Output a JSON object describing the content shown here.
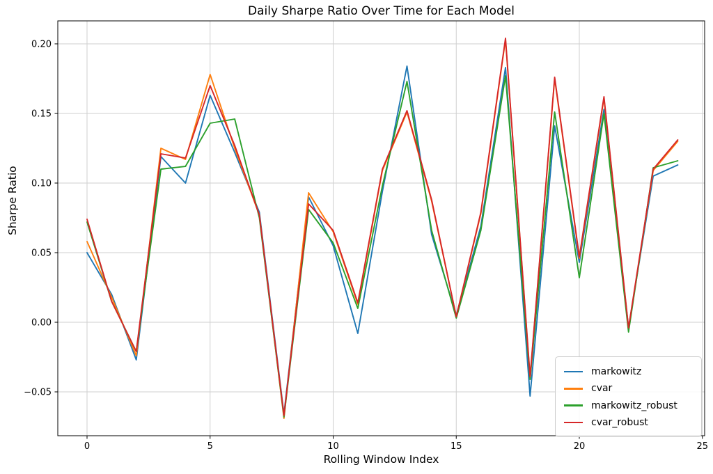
{
  "figure": {
    "background": "#ffffff"
  },
  "chart_data": {
    "type": "line",
    "title": "Daily Sharpe Ratio Over Time for Each Model",
    "xlabel": "Rolling Window Index",
    "ylabel": "Sharpe Ratio",
    "grid": true,
    "legend_position": "lower right",
    "xlim": [
      -1.2,
      25.2
    ],
    "ylim": [
      -0.082,
      0.2185
    ],
    "x": [
      0,
      1,
      2,
      3,
      4,
      5,
      6,
      7,
      8,
      9,
      10,
      11,
      12,
      13,
      14,
      15,
      16,
      17,
      18,
      19,
      20,
      21,
      22,
      23,
      24
    ],
    "xticks": {
      "values": [
        0,
        5,
        10,
        15,
        20,
        25
      ],
      "labels": [
        "0",
        "5",
        "10",
        "15",
        "20",
        "25"
      ]
    },
    "yticks": {
      "values": [
        -0.05,
        0.0,
        0.05,
        0.1,
        0.15,
        0.2
      ],
      "labels": [
        "−0.05",
        "0.00",
        "0.05",
        "0.10",
        "0.15",
        "0.20"
      ]
    },
    "series": [
      {
        "name": "markowitz",
        "color": "#1f77b4",
        "values": [
          0.05,
          0.02,
          -0.027,
          0.119,
          0.1,
          0.163,
          0.122,
          0.079,
          -0.066,
          0.09,
          0.055,
          -0.008,
          0.094,
          0.184,
          0.063,
          0.005,
          0.069,
          0.183,
          -0.053,
          0.141,
          0.043,
          0.153,
          -0.004,
          0.105,
          0.113
        ]
      },
      {
        "name": "cvar",
        "color": "#ff7f0e",
        "values": [
          0.058,
          0.018,
          -0.024,
          0.125,
          0.117,
          0.178,
          0.125,
          0.077,
          -0.069,
          0.093,
          0.065,
          0.013,
          0.109,
          0.151,
          0.087,
          0.004,
          0.078,
          0.203,
          -0.04,
          0.175,
          0.046,
          0.161,
          -0.005,
          0.109,
          0.13
        ]
      },
      {
        "name": "markowitz_robust",
        "color": "#2ca02c",
        "values": [
          0.072,
          0.015,
          -0.021,
          0.11,
          0.112,
          0.143,
          0.146,
          0.075,
          -0.068,
          0.081,
          0.057,
          0.01,
          0.098,
          0.173,
          0.066,
          0.003,
          0.066,
          0.177,
          -0.041,
          0.151,
          0.032,
          0.15,
          -0.007,
          0.111,
          0.116
        ]
      },
      {
        "name": "cvar_robust",
        "color": "#d62728",
        "values": [
          0.074,
          0.015,
          -0.021,
          0.121,
          0.118,
          0.17,
          0.127,
          0.077,
          -0.067,
          0.085,
          0.066,
          0.014,
          0.11,
          0.152,
          0.088,
          0.004,
          0.079,
          0.204,
          -0.039,
          0.176,
          0.047,
          0.162,
          -0.004,
          0.11,
          0.131
        ]
      }
    ]
  }
}
